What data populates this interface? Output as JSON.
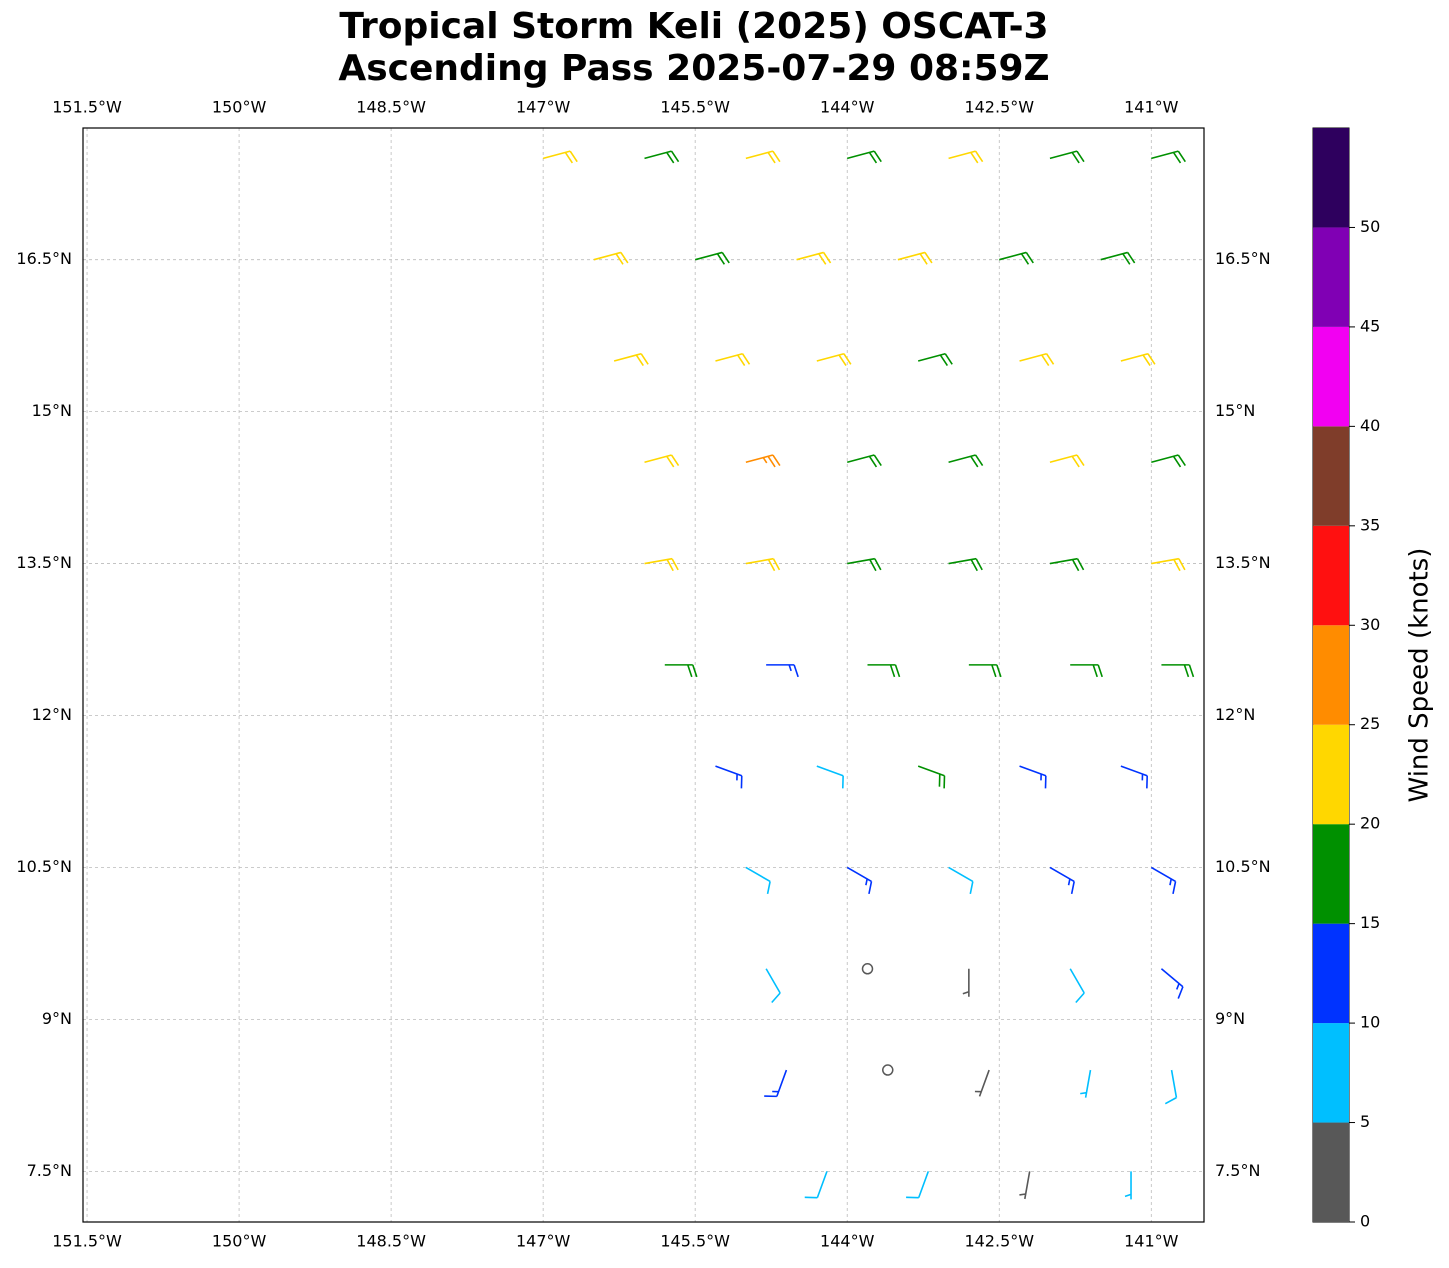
{
  "chart_data": {
    "type": "barbs",
    "title": [
      "Tropical Storm Keli (2025) OSCAT-3",
      "Ascending Pass 2025-07-29 08:59Z"
    ],
    "xlim": [
      -151.54,
      -140.48
    ],
    "ylim": [
      7.0,
      17.8
    ],
    "xticks": [
      {
        "value": -151.5,
        "label": "151.5°W"
      },
      {
        "value": -150,
        "label": "150°W"
      },
      {
        "value": -148.5,
        "label": "148.5°W"
      },
      {
        "value": -147,
        "label": "147°W"
      },
      {
        "value": -145.5,
        "label": "145.5°W"
      },
      {
        "value": -144,
        "label": "144°W"
      },
      {
        "value": -142.5,
        "label": "142.5°W"
      },
      {
        "value": -141,
        "label": "141°W"
      }
    ],
    "yticks": [
      {
        "value": 7.5,
        "label": "7.5°N"
      },
      {
        "value": 9,
        "label": "9°N"
      },
      {
        "value": 10.5,
        "label": "10.5°N"
      },
      {
        "value": 12,
        "label": "12°N"
      },
      {
        "value": 13.5,
        "label": "13.5°N"
      },
      {
        "value": 15,
        "label": "15°N"
      },
      {
        "value": 16.5,
        "label": "16.5°N"
      }
    ],
    "grid": true,
    "barbs": {
      "lon": [
        -147,
        -146,
        -145,
        -144,
        -143,
        -142,
        -141,
        -146.5,
        -145.5,
        -144.5,
        -143.5,
        -142.5,
        -141.5,
        -146.3,
        -145.3,
        -144.3,
        -143.3,
        -142.3,
        -141.3,
        -146,
        -145,
        -144,
        -143,
        -142,
        -141,
        -146,
        -145,
        -144,
        -143,
        -142,
        -141,
        -145.8,
        -144.8,
        -143.8,
        -142.8,
        -141.8,
        -140.9,
        -145.3,
        -144.3,
        -143.3,
        -142.3,
        -141.3,
        -145,
        -144,
        -143,
        -142,
        -141,
        -144.8,
        -143.8,
        -142.8,
        -141.8,
        -140.9,
        -144.6,
        -143.6,
        -142.6,
        -141.6,
        -140.8,
        -144.2,
        -143.2,
        -142.2,
        -141.2
      ],
      "lat": [
        17.5,
        17.5,
        17.5,
        17.5,
        17.5,
        17.5,
        17.5,
        16.5,
        16.5,
        16.5,
        16.5,
        16.5,
        16.5,
        15.5,
        15.5,
        15.5,
        15.5,
        15.5,
        15.5,
        14.5,
        14.5,
        14.5,
        14.5,
        14.5,
        14.5,
        13.5,
        13.5,
        13.5,
        13.5,
        13.5,
        13.5,
        12.5,
        12.5,
        12.5,
        12.5,
        12.5,
        12.5,
        11.5,
        11.5,
        11.5,
        11.5,
        11.5,
        10.5,
        10.5,
        10.5,
        10.5,
        10.5,
        9.5,
        9.5,
        9.5,
        9.5,
        9.5,
        8.5,
        8.5,
        8.5,
        8.5,
        8.5,
        7.5,
        7.5,
        7.5,
        7.5
      ],
      "speed": [
        22,
        18,
        22,
        18,
        22,
        18,
        18,
        22,
        18,
        22,
        22,
        18,
        18,
        22,
        22,
        22,
        18,
        22,
        22,
        22,
        27,
        18,
        18,
        22,
        18,
        22,
        22,
        18,
        18,
        18,
        22,
        18,
        13,
        18,
        18,
        18,
        18,
        13,
        8,
        18,
        13,
        13,
        8,
        13,
        8,
        13,
        13,
        8,
        2,
        3,
        8,
        13,
        13,
        1,
        4,
        7,
        8,
        8,
        8,
        4,
        6
      ],
      "direction": [
        75,
        75,
        75,
        75,
        75,
        75,
        75,
        75,
        75,
        75,
        75,
        75,
        75,
        75,
        75,
        75,
        75,
        75,
        75,
        75,
        75,
        75,
        75,
        75,
        75,
        80,
        80,
        80,
        80,
        80,
        80,
        90,
        90,
        90,
        90,
        90,
        90,
        110,
        110,
        110,
        110,
        110,
        120,
        120,
        120,
        120,
        120,
        150,
        160,
        180,
        150,
        130,
        200,
        220,
        200,
        190,
        170,
        200,
        200,
        190,
        180
      ]
    },
    "colorbar": {
      "label": "Wind Speed (knots)",
      "bins": [
        0,
        5,
        10,
        15,
        20,
        25,
        30,
        35,
        40,
        45,
        50,
        55
      ],
      "colors": [
        "#585858",
        "#00bfff",
        "#0033ff",
        "#009000",
        "#ffd700",
        "#ff8c00",
        "#ff1010",
        "#7f3d2a",
        "#f200f2",
        "#8000b4",
        "#2e005e"
      ],
      "ticks": [
        0,
        5,
        10,
        15,
        20,
        25,
        30,
        35,
        40,
        45,
        50
      ]
    }
  }
}
